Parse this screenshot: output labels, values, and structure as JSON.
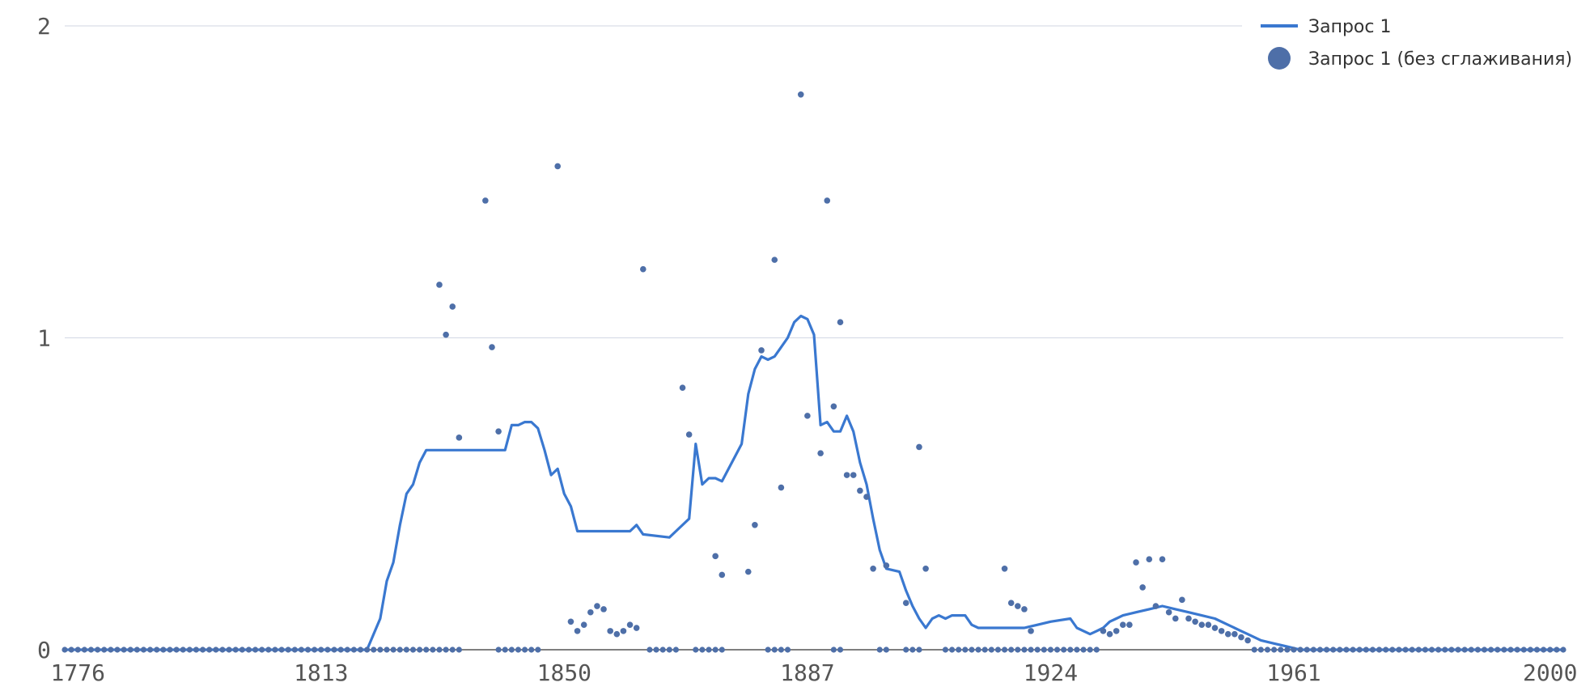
{
  "chart_data": {
    "type": "line",
    "title": "",
    "xlabel": "",
    "ylabel": "",
    "xlim": [
      1774,
      2002
    ],
    "ylim": [
      0,
      2
    ],
    "x_ticks": [
      "1776",
      "1813",
      "1850",
      "1887",
      "1924",
      "1961",
      "2000"
    ],
    "y_ticks": [
      "0",
      "1",
      "2"
    ],
    "grid": true,
    "legend": "top-right",
    "colors": {
      "line": "#3a78d0",
      "points": "#4e6fa8"
    },
    "series": [
      {
        "name": "Запрос 1",
        "style": "line",
        "x": [
          1774,
          1820,
          1822,
          1823,
          1824,
          1825,
          1826,
          1827,
          1828,
          1829,
          1830,
          1840,
          1841,
          1842,
          1843,
          1844,
          1845,
          1846,
          1847,
          1848,
          1849,
          1850,
          1851,
          1852,
          1854,
          1857,
          1860,
          1861,
          1862,
          1866,
          1867,
          1869,
          1870,
          1871,
          1872,
          1873,
          1874,
          1877,
          1878,
          1879,
          1880,
          1881,
          1882,
          1883,
          1884,
          1885,
          1886,
          1887,
          1888,
          1889,
          1890,
          1891,
          1892,
          1893,
          1894,
          1895,
          1896,
          1897,
          1898,
          1899,
          1901,
          1902,
          1903,
          1904,
          1905,
          1906,
          1907,
          1908,
          1909,
          1910,
          1911,
          1912,
          1913,
          1914,
          1915,
          1920,
          1922,
          1924,
          1927,
          1928,
          1930,
          1931,
          1932,
          1933,
          1934,
          1935,
          1937,
          1939,
          1941,
          1943,
          1945,
          1947,
          1949,
          1951,
          1953,
          1954,
          1956,
          1958,
          1960,
          1962,
          1964,
          1966,
          2002
        ],
        "y": [
          0,
          0,
          0.1,
          0.22,
          0.28,
          0.4,
          0.5,
          0.53,
          0.6,
          0.64,
          0.64,
          0.64,
          0.64,
          0.72,
          0.72,
          0.73,
          0.73,
          0.71,
          0.64,
          0.56,
          0.58,
          0.5,
          0.46,
          0.38,
          0.38,
          0.38,
          0.38,
          0.4,
          0.37,
          0.36,
          0.38,
          0.42,
          0.66,
          0.53,
          0.55,
          0.55,
          0.54,
          0.66,
          0.82,
          0.9,
          0.94,
          0.93,
          0.94,
          0.97,
          1.0,
          1.05,
          1.07,
          1.06,
          1.01,
          0.72,
          0.73,
          0.7,
          0.7,
          0.75,
          0.7,
          0.6,
          0.53,
          0.42,
          0.32,
          0.26,
          0.25,
          0.19,
          0.14,
          0.1,
          0.07,
          0.1,
          0.11,
          0.1,
          0.11,
          0.11,
          0.11,
          0.08,
          0.07,
          0.07,
          0.07,
          0.07,
          0.08,
          0.09,
          0.1,
          0.07,
          0.05,
          0.06,
          0.07,
          0.09,
          0.1,
          0.11,
          0.12,
          0.13,
          0.14,
          0.13,
          0.12,
          0.11,
          0.1,
          0.08,
          0.06,
          0.05,
          0.03,
          0.02,
          0.01,
          0,
          0,
          0,
          0
        ]
      },
      {
        "name": "Запрос 1 (без сглаживания)",
        "style": "scatter",
        "x": [
          1831,
          1832,
          1833,
          1834,
          1838,
          1839,
          1840,
          1849,
          1851,
          1852,
          1853,
          1854,
          1855,
          1856,
          1857,
          1858,
          1859,
          1860,
          1861,
          1862,
          1868,
          1869,
          1873,
          1874,
          1878,
          1879,
          1880,
          1882,
          1883,
          1886,
          1887,
          1889,
          1890,
          1891,
          1892,
          1893,
          1894,
          1895,
          1896,
          1897,
          1899,
          1902,
          1904,
          1905,
          1917,
          1918,
          1919,
          1920,
          1921,
          1932,
          1933,
          1934,
          1935,
          1936,
          1937,
          1938,
          1939,
          1940,
          1941,
          1942,
          1943,
          1944,
          1945,
          1946,
          1947,
          1948,
          1949,
          1950,
          1951,
          1952,
          1953,
          1954
        ],
        "y": [
          1.17,
          1.01,
          1.1,
          0.68,
          1.44,
          0.97,
          0.7,
          1.55,
          0.09,
          0.06,
          0.08,
          0.12,
          0.14,
          0.13,
          0.06,
          0.05,
          0.06,
          0.08,
          0.07,
          1.22,
          0.84,
          0.69,
          0.3,
          0.24,
          0.25,
          0.4,
          0.96,
          1.25,
          0.52,
          1.78,
          0.75,
          0.63,
          1.44,
          0.78,
          1.05,
          0.56,
          0.56,
          0.51,
          0.49,
          0.26,
          0.27,
          0.15,
          0.65,
          0.26,
          0.26,
          0.15,
          0.14,
          0.13,
          0.06,
          0.06,
          0.05,
          0.06,
          0.08,
          0.08,
          0.28,
          0.2,
          0.29,
          0.14,
          0.29,
          0.12,
          0.1,
          0.16,
          0.1,
          0.09,
          0.08,
          0.08,
          0.07,
          0.06,
          0.05,
          0.05,
          0.04,
          0.03
        ],
        "zero_years": [
          1774,
          1775,
          1776,
          1777,
          1778,
          1779,
          1780,
          1781,
          1782,
          1783,
          1784,
          1785,
          1786,
          1787,
          1788,
          1789,
          1790,
          1791,
          1792,
          1793,
          1794,
          1795,
          1796,
          1797,
          1798,
          1799,
          1800,
          1801,
          1802,
          1803,
          1804,
          1805,
          1806,
          1807,
          1808,
          1809,
          1810,
          1811,
          1812,
          1813,
          1814,
          1815,
          1816,
          1817,
          1818,
          1819,
          1820,
          1821,
          1822,
          1823,
          1824,
          1825,
          1826,
          1827,
          1828,
          1829,
          1830,
          1831,
          1832,
          1833,
          1834,
          1840,
          1841,
          1842,
          1843,
          1844,
          1845,
          1846,
          1863,
          1864,
          1865,
          1866,
          1867,
          1870,
          1871,
          1872,
          1873,
          1874,
          1881,
          1882,
          1883,
          1884,
          1891,
          1892,
          1898,
          1899,
          1902,
          1903,
          1904,
          1908,
          1909,
          1910,
          1911,
          1912,
          1913,
          1914,
          1915,
          1916,
          1917,
          1918,
          1919,
          1920,
          1921,
          1922,
          1923,
          1924,
          1925,
          1926,
          1927,
          1928,
          1929,
          1930,
          1931,
          1955,
          1956,
          1957,
          1958,
          1959,
          1960,
          1961,
          1962,
          1963,
          1964,
          1965,
          1966,
          1967,
          1968,
          1969,
          1970,
          1971,
          1972,
          1973,
          1974,
          1975,
          1976,
          1977,
          1978,
          1979,
          1980,
          1981,
          1982,
          1983,
          1984,
          1985,
          1986,
          1987,
          1988,
          1989,
          1990,
          1991,
          1992,
          1993,
          1994,
          1995,
          1996,
          1997,
          1998,
          1999,
          2000,
          2001,
          2002
        ]
      }
    ]
  }
}
